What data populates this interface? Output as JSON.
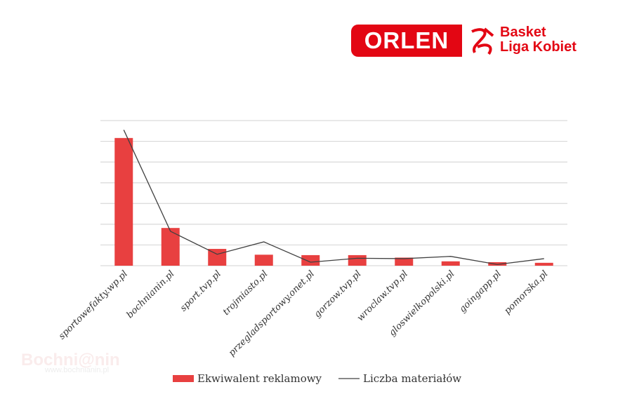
{
  "logo": {
    "brand": "ORLEN",
    "line1": "Basket",
    "line2": "Liga Kobiet",
    "color": "#e30613"
  },
  "watermark": {
    "name": "Bochni@nin",
    "url": "www.bochnianin.pl"
  },
  "chart_data": {
    "type": "bar",
    "title": "",
    "xlabel": "",
    "ylabel": "",
    "ylim": [
      0,
      7
    ],
    "grid": true,
    "legend_position": "bottom",
    "categories": [
      "sportowefakty.wp.pl",
      "bochnianin.pl",
      "sport.tvp.pl",
      "trojmiasto.pl",
      "przegladsportowy.onet.pl",
      "gorzow.tvp.pl",
      "wroclaw.tvp.pl",
      "gloswielkopolski.pl",
      "goingapp.pl",
      "pomorska.pl"
    ],
    "series": [
      {
        "name": "Ekwiwalent reklamowy",
        "kind": "bar",
        "color": "#e84040",
        "values": [
          6.16,
          1.82,
          0.81,
          0.53,
          0.51,
          0.51,
          0.39,
          0.21,
          0.17,
          0.14
        ]
      },
      {
        "name": "Liczba materiałów",
        "kind": "line",
        "color": "#404040",
        "values": [
          6.55,
          1.66,
          0.55,
          1.15,
          0.17,
          0.36,
          0.34,
          0.45,
          0.06,
          0.34
        ]
      }
    ]
  }
}
